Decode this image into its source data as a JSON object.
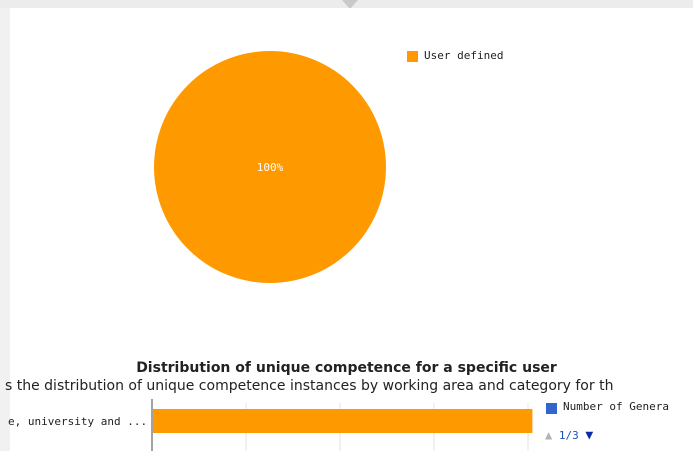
{
  "chart_data": [
    {
      "type": "pie",
      "slices": [
        {
          "name": "User defined",
          "value": 100,
          "label": "100%",
          "color": "#ff9900"
        }
      ],
      "legend": {
        "entries": [
          "User defined"
        ],
        "placement": "top-right"
      }
    },
    {
      "type": "bar",
      "orientation": "horizontal",
      "title": "Distribution of unique competence for a specific user",
      "subtitle": "s the distribution of unique competence instances by working area and category for th",
      "categories": [
        "e, university and ..."
      ],
      "series": [
        {
          "name": "Number of Genera",
          "values": [
            1
          ],
          "color": "#ff9900"
        }
      ],
      "legend": {
        "entries": [
          "Number of Genera"
        ],
        "placement": "right",
        "swatch_color": "#3366cc"
      },
      "xlim": [
        0,
        1.02
      ],
      "grid": true
    }
  ],
  "pager": {
    "text": "1/3",
    "up_icon": "▲",
    "down_icon": "▼"
  }
}
